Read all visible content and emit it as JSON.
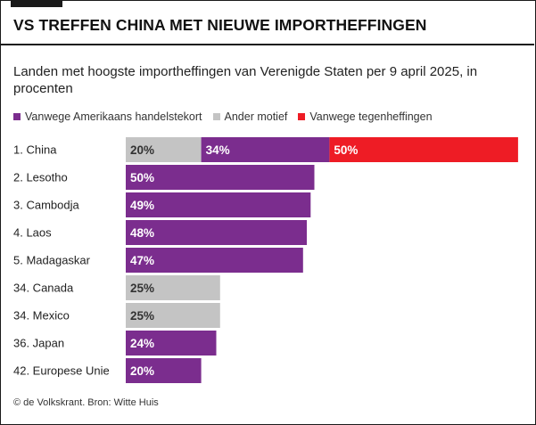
{
  "title": "VS TREFFEN CHINA MET NIEUWE IMPORTHEFFINGEN",
  "subtitle": "Landen met hoogste importheffingen van Verenigde Staten per 9 april 2025, in procenten",
  "source": "© de Volkskrant. Bron: Witte Huis",
  "colors": {
    "trade_deficit": "#7b2d8e",
    "other": "#c4c4c4",
    "retaliation": "#ee1c25"
  },
  "legend": [
    {
      "label": "Vanwege Amerikaans handelstekort",
      "color": "#7b2d8e"
    },
    {
      "label": "Ander motief",
      "color": "#c4c4c4"
    },
    {
      "label": "Vanwege tegenheffingen",
      "color": "#ee1c25"
    }
  ],
  "chart_data": {
    "type": "bar",
    "orientation": "horizontal",
    "stacked": true,
    "title": "VS TREFFEN CHINA MET NIEUWE IMPORTHEFFINGEN",
    "xlabel": "",
    "ylabel": "",
    "xlim": [
      0,
      105
    ],
    "grid": false,
    "categories": [
      "1. China",
      "2. Lesotho",
      "3. Cambodja",
      "4. Laos",
      "5. Madagaskar",
      "34. Canada",
      "34. Mexico",
      "36. Japan",
      "42. Europese Unie"
    ],
    "series": [
      {
        "name": "Ander motief",
        "key": "other",
        "values": [
          20,
          0,
          0,
          0,
          0,
          25,
          25,
          0,
          0
        ],
        "labels": [
          "20%",
          "",
          "",
          "",
          "",
          "25%",
          "25%",
          "",
          ""
        ]
      },
      {
        "name": "Vanwege Amerikaans handelstekort",
        "key": "trade_deficit",
        "values": [
          34,
          50,
          49,
          48,
          47,
          0,
          0,
          24,
          20
        ],
        "labels": [
          "34%",
          "50%",
          "49%",
          "48%",
          "47%",
          "",
          "",
          "24%",
          "20%"
        ]
      },
      {
        "name": "Vanwege tegenheffingen",
        "key": "retaliation",
        "values": [
          50,
          0,
          0,
          0,
          0,
          0,
          0,
          0,
          0
        ],
        "labels": [
          "50%",
          "",
          "",
          "",
          "",
          "",
          "",
          "",
          ""
        ]
      }
    ]
  }
}
